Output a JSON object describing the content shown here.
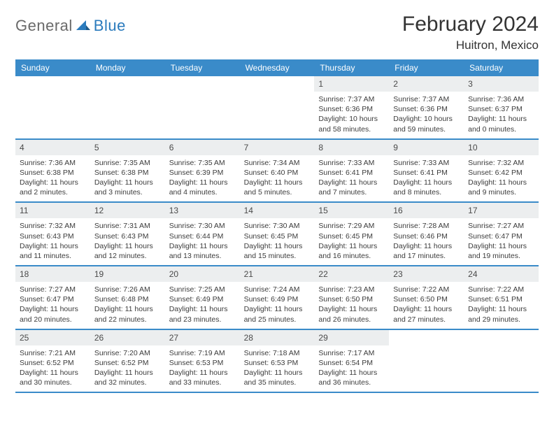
{
  "brand": {
    "part1": "General",
    "part2": "Blue"
  },
  "title": "February 2024",
  "location": "Huitron, Mexico",
  "colors": {
    "header_bg": "#3a8bc9",
    "header_text": "#ffffff",
    "datenum_bg": "#eceeef",
    "row_border": "#3a8bc9",
    "body_text": "#3c3c3c",
    "title_text": "#333333",
    "logo_gray": "#6a6a6a",
    "logo_blue": "#2b7bbd",
    "page_bg": "#ffffff"
  },
  "layout": {
    "columns": 7,
    "rows": 5,
    "cell_min_height": 86,
    "datenum_fontsize": 12,
    "details_fontsize": 10.5,
    "header_fontsize": 12,
    "title_fontsize": 30,
    "location_fontsize": 17
  },
  "weekdays": [
    "Sunday",
    "Monday",
    "Tuesday",
    "Wednesday",
    "Thursday",
    "Friday",
    "Saturday"
  ],
  "weeks": [
    [
      {
        "empty": true
      },
      {
        "empty": true
      },
      {
        "empty": true
      },
      {
        "empty": true
      },
      {
        "num": "1",
        "sunrise": "Sunrise: 7:37 AM",
        "sunset": "Sunset: 6:36 PM",
        "day1": "Daylight: 10 hours",
        "day2": "and 58 minutes."
      },
      {
        "num": "2",
        "sunrise": "Sunrise: 7:37 AM",
        "sunset": "Sunset: 6:36 PM",
        "day1": "Daylight: 10 hours",
        "day2": "and 59 minutes."
      },
      {
        "num": "3",
        "sunrise": "Sunrise: 7:36 AM",
        "sunset": "Sunset: 6:37 PM",
        "day1": "Daylight: 11 hours",
        "day2": "and 0 minutes."
      }
    ],
    [
      {
        "num": "4",
        "sunrise": "Sunrise: 7:36 AM",
        "sunset": "Sunset: 6:38 PM",
        "day1": "Daylight: 11 hours",
        "day2": "and 2 minutes."
      },
      {
        "num": "5",
        "sunrise": "Sunrise: 7:35 AM",
        "sunset": "Sunset: 6:38 PM",
        "day1": "Daylight: 11 hours",
        "day2": "and 3 minutes."
      },
      {
        "num": "6",
        "sunrise": "Sunrise: 7:35 AM",
        "sunset": "Sunset: 6:39 PM",
        "day1": "Daylight: 11 hours",
        "day2": "and 4 minutes."
      },
      {
        "num": "7",
        "sunrise": "Sunrise: 7:34 AM",
        "sunset": "Sunset: 6:40 PM",
        "day1": "Daylight: 11 hours",
        "day2": "and 5 minutes."
      },
      {
        "num": "8",
        "sunrise": "Sunrise: 7:33 AM",
        "sunset": "Sunset: 6:41 PM",
        "day1": "Daylight: 11 hours",
        "day2": "and 7 minutes."
      },
      {
        "num": "9",
        "sunrise": "Sunrise: 7:33 AM",
        "sunset": "Sunset: 6:41 PM",
        "day1": "Daylight: 11 hours",
        "day2": "and 8 minutes."
      },
      {
        "num": "10",
        "sunrise": "Sunrise: 7:32 AM",
        "sunset": "Sunset: 6:42 PM",
        "day1": "Daylight: 11 hours",
        "day2": "and 9 minutes."
      }
    ],
    [
      {
        "num": "11",
        "sunrise": "Sunrise: 7:32 AM",
        "sunset": "Sunset: 6:43 PM",
        "day1": "Daylight: 11 hours",
        "day2": "and 11 minutes."
      },
      {
        "num": "12",
        "sunrise": "Sunrise: 7:31 AM",
        "sunset": "Sunset: 6:43 PM",
        "day1": "Daylight: 11 hours",
        "day2": "and 12 minutes."
      },
      {
        "num": "13",
        "sunrise": "Sunrise: 7:30 AM",
        "sunset": "Sunset: 6:44 PM",
        "day1": "Daylight: 11 hours",
        "day2": "and 13 minutes."
      },
      {
        "num": "14",
        "sunrise": "Sunrise: 7:30 AM",
        "sunset": "Sunset: 6:45 PM",
        "day1": "Daylight: 11 hours",
        "day2": "and 15 minutes."
      },
      {
        "num": "15",
        "sunrise": "Sunrise: 7:29 AM",
        "sunset": "Sunset: 6:45 PM",
        "day1": "Daylight: 11 hours",
        "day2": "and 16 minutes."
      },
      {
        "num": "16",
        "sunrise": "Sunrise: 7:28 AM",
        "sunset": "Sunset: 6:46 PM",
        "day1": "Daylight: 11 hours",
        "day2": "and 17 minutes."
      },
      {
        "num": "17",
        "sunrise": "Sunrise: 7:27 AM",
        "sunset": "Sunset: 6:47 PM",
        "day1": "Daylight: 11 hours",
        "day2": "and 19 minutes."
      }
    ],
    [
      {
        "num": "18",
        "sunrise": "Sunrise: 7:27 AM",
        "sunset": "Sunset: 6:47 PM",
        "day1": "Daylight: 11 hours",
        "day2": "and 20 minutes."
      },
      {
        "num": "19",
        "sunrise": "Sunrise: 7:26 AM",
        "sunset": "Sunset: 6:48 PM",
        "day1": "Daylight: 11 hours",
        "day2": "and 22 minutes."
      },
      {
        "num": "20",
        "sunrise": "Sunrise: 7:25 AM",
        "sunset": "Sunset: 6:49 PM",
        "day1": "Daylight: 11 hours",
        "day2": "and 23 minutes."
      },
      {
        "num": "21",
        "sunrise": "Sunrise: 7:24 AM",
        "sunset": "Sunset: 6:49 PM",
        "day1": "Daylight: 11 hours",
        "day2": "and 25 minutes."
      },
      {
        "num": "22",
        "sunrise": "Sunrise: 7:23 AM",
        "sunset": "Sunset: 6:50 PM",
        "day1": "Daylight: 11 hours",
        "day2": "and 26 minutes."
      },
      {
        "num": "23",
        "sunrise": "Sunrise: 7:22 AM",
        "sunset": "Sunset: 6:50 PM",
        "day1": "Daylight: 11 hours",
        "day2": "and 27 minutes."
      },
      {
        "num": "24",
        "sunrise": "Sunrise: 7:22 AM",
        "sunset": "Sunset: 6:51 PM",
        "day1": "Daylight: 11 hours",
        "day2": "and 29 minutes."
      }
    ],
    [
      {
        "num": "25",
        "sunrise": "Sunrise: 7:21 AM",
        "sunset": "Sunset: 6:52 PM",
        "day1": "Daylight: 11 hours",
        "day2": "and 30 minutes."
      },
      {
        "num": "26",
        "sunrise": "Sunrise: 7:20 AM",
        "sunset": "Sunset: 6:52 PM",
        "day1": "Daylight: 11 hours",
        "day2": "and 32 minutes."
      },
      {
        "num": "27",
        "sunrise": "Sunrise: 7:19 AM",
        "sunset": "Sunset: 6:53 PM",
        "day1": "Daylight: 11 hours",
        "day2": "and 33 minutes."
      },
      {
        "num": "28",
        "sunrise": "Sunrise: 7:18 AM",
        "sunset": "Sunset: 6:53 PM",
        "day1": "Daylight: 11 hours",
        "day2": "and 35 minutes."
      },
      {
        "num": "29",
        "sunrise": "Sunrise: 7:17 AM",
        "sunset": "Sunset: 6:54 PM",
        "day1": "Daylight: 11 hours",
        "day2": "and 36 minutes."
      },
      {
        "empty": true
      },
      {
        "empty": true
      }
    ]
  ]
}
